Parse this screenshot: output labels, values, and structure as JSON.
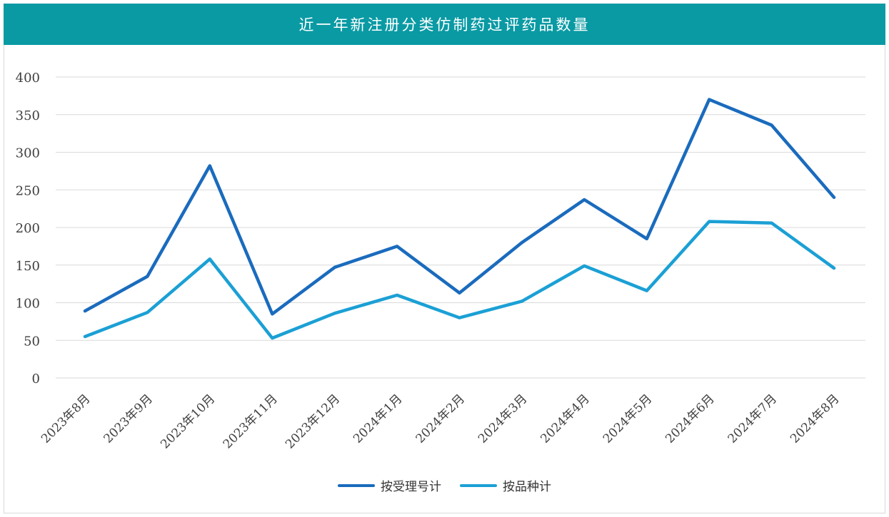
{
  "title": "近一年新注册分类仿制药过评药品数量",
  "colors": {
    "header_bg": "#0a9aa4",
    "series_1": "#1a6bbd",
    "series_2": "#1ba0d5",
    "grid": "#d9d9d9"
  },
  "chart_data": {
    "type": "line",
    "title": "近一年新注册分类仿制药过评药品数量",
    "categories": [
      "2023年8月",
      "2023年9月",
      "2023年10月",
      "2023年11月",
      "2023年12月",
      "2024年1月",
      "2024年2月",
      "2024年3月",
      "2024年4月",
      "2024年5月",
      "2024年6月",
      "2024年7月",
      "2024年8月"
    ],
    "series": [
      {
        "name": "按受理号计",
        "values": [
          89,
          135,
          282,
          85,
          147,
          175,
          113,
          180,
          237,
          185,
          370,
          336,
          240
        ]
      },
      {
        "name": "按品种计",
        "values": [
          55,
          87,
          158,
          53,
          86,
          110,
          80,
          102,
          149,
          116,
          208,
          206,
          146
        ]
      }
    ],
    "ylim": [
      0,
      400
    ],
    "yticks": [
      0,
      50,
      100,
      150,
      200,
      250,
      300,
      350,
      400
    ],
    "grid": true,
    "legend": "bottom"
  }
}
